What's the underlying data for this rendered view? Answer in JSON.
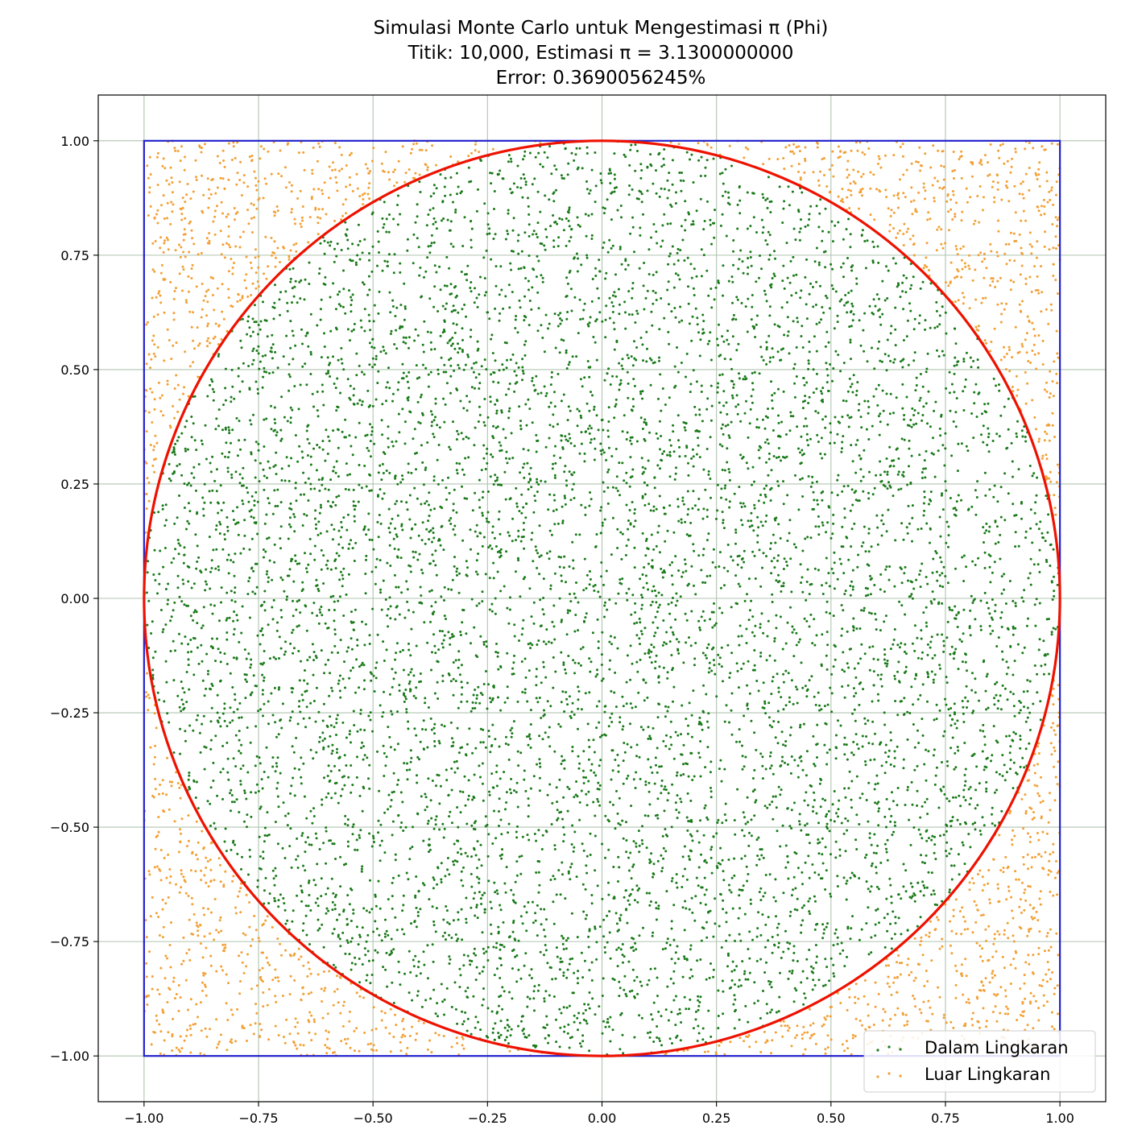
{
  "chart_data": {
    "type": "scatter",
    "title_lines": [
      "Simulasi Monte Carlo untuk Mengestimasi π (Phi)",
      "Titik: 10,000, Estimasi π = 3.1300000000",
      "Error: 0.3690056245%"
    ],
    "xlabel": "",
    "ylabel": "",
    "xlim": [
      -1.1,
      1.1
    ],
    "ylim": [
      -1.1,
      1.1
    ],
    "x_ticks": [
      -1.0,
      -0.75,
      -0.5,
      -0.25,
      0.0,
      0.25,
      0.5,
      0.75,
      1.0
    ],
    "x_tick_labels": [
      "−1.00",
      "−0.75",
      "−0.50",
      "−0.25",
      "0.00",
      "0.25",
      "0.50",
      "0.75",
      "1.00"
    ],
    "y_ticks": [
      -1.0,
      -0.75,
      -0.5,
      -0.25,
      0.0,
      0.25,
      0.5,
      0.75,
      1.0
    ],
    "y_tick_labels": [
      "−1.00",
      "−0.75",
      "−0.50",
      "−0.25",
      "0.00",
      "0.25",
      "0.50",
      "0.75",
      "1.00"
    ],
    "grid": true,
    "legend_position": "lower-right",
    "points_total": 10000,
    "points_inside": 7825,
    "points_outside": 2175,
    "series": [
      {
        "name": "Dalam Lingkaran",
        "role": "inside",
        "color": "#1a7a1a",
        "count": 7825
      },
      {
        "name": "Luar Lingkaran",
        "role": "outside",
        "color": "#f2a035",
        "count": 2175
      }
    ],
    "overlays": [
      {
        "shape": "square",
        "xmin": -1.0,
        "xmax": 1.0,
        "ymin": -1.0,
        "ymax": 1.0,
        "color": "#2222cc"
      },
      {
        "shape": "circle",
        "cx": 0.0,
        "cy": 0.0,
        "r": 1.0,
        "color": "#ee1100"
      }
    ],
    "colors": {
      "grid": "#b0c4b0",
      "axes": "#000000"
    }
  }
}
